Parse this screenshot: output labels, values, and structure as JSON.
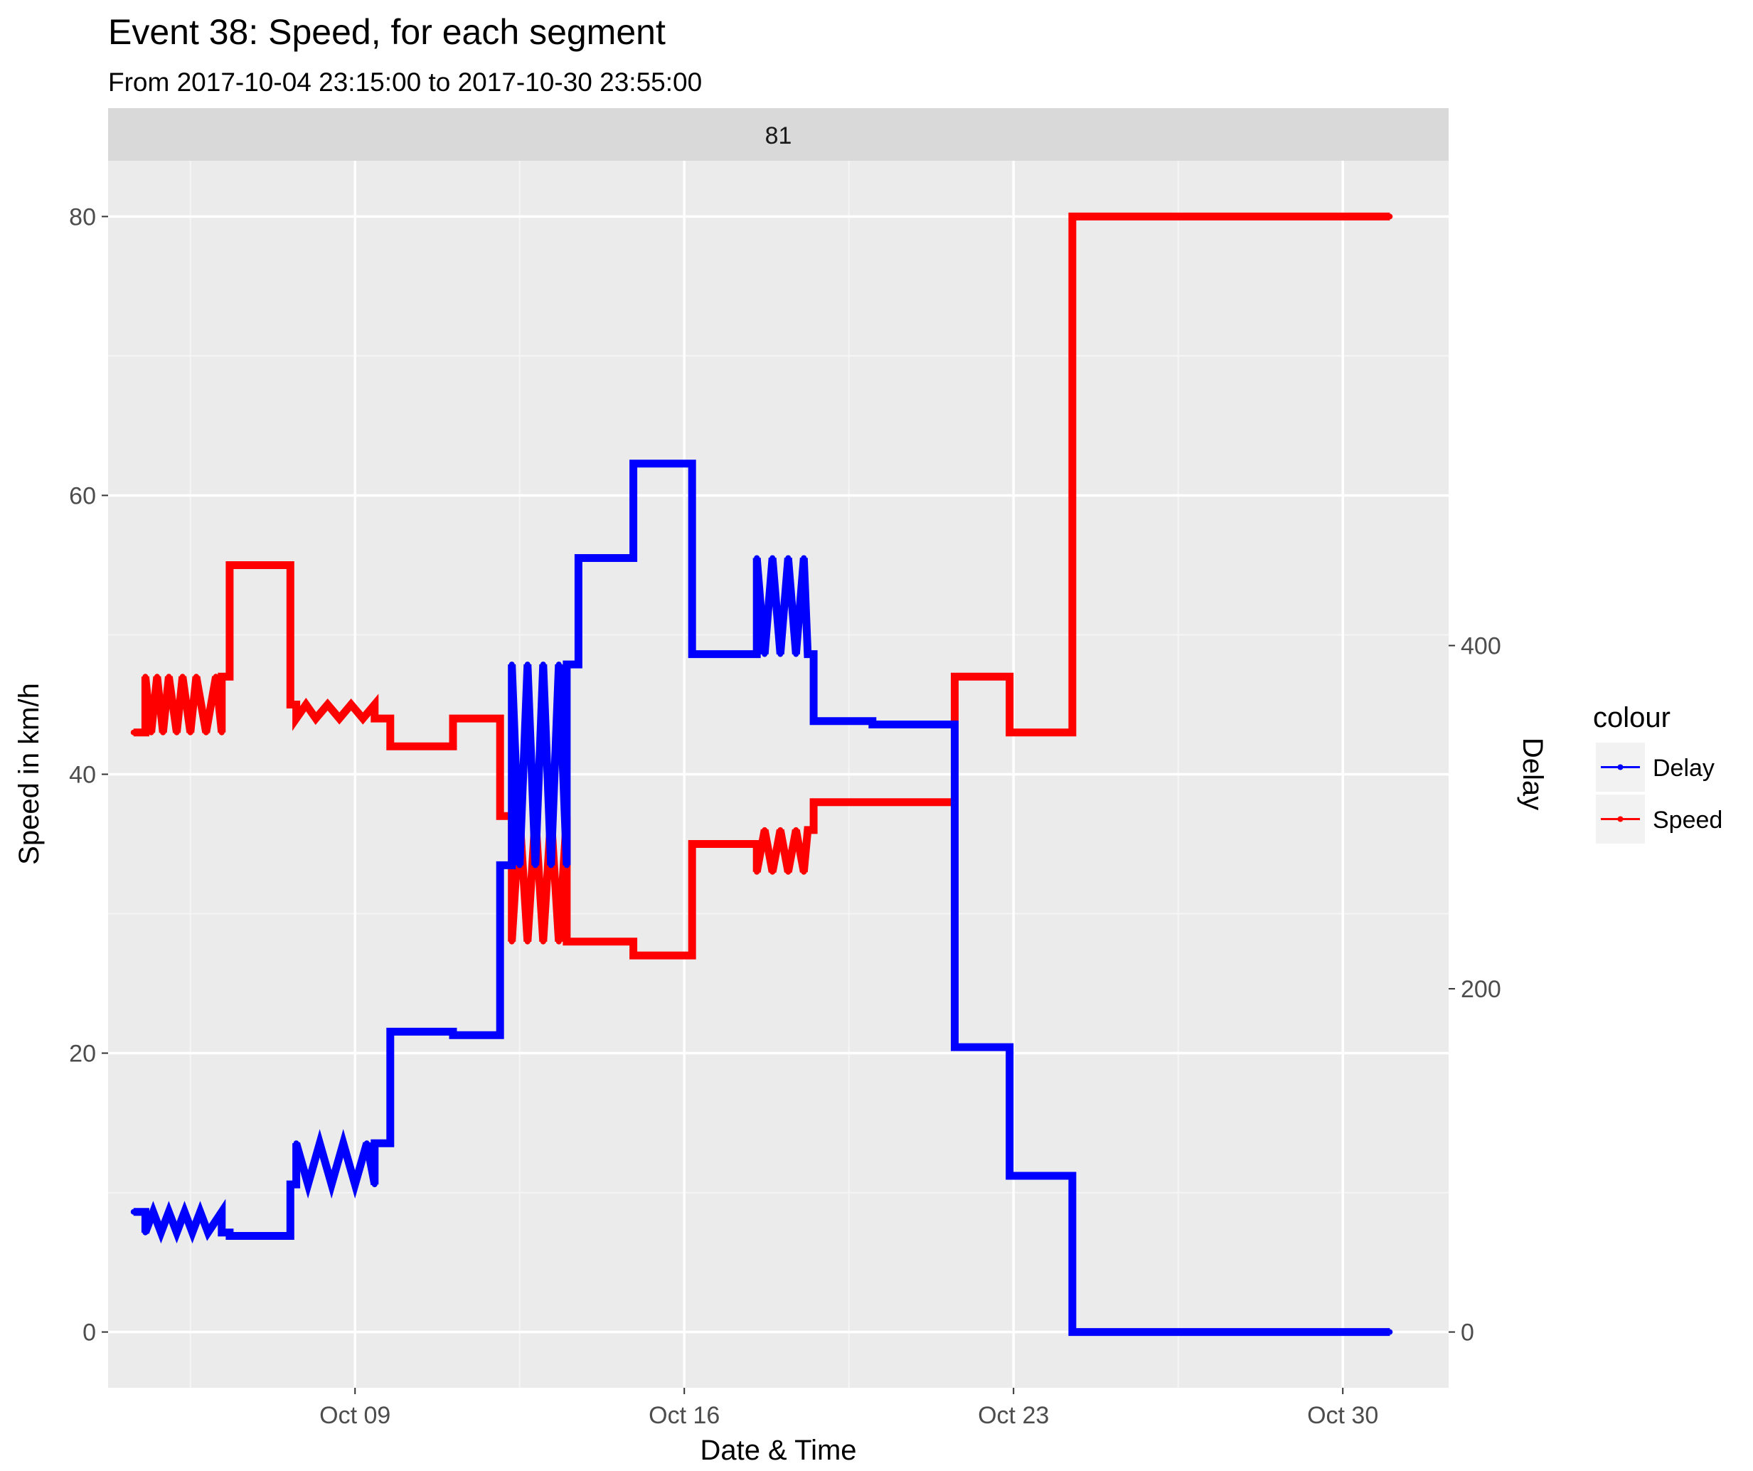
{
  "title": "Event 38: Speed, for each segment",
  "subtitle": "From 2017-10-04 23:15:00 to 2017-10-30 23:55:00",
  "chart_data": {
    "type": "line",
    "facet_label": "81",
    "xlabel": "Date & Time",
    "ylabel": "Speed in km/h",
    "y2label": "Delay",
    "x_ticks": [
      {
        "x": "2017-10-09",
        "label": "Oct 09"
      },
      {
        "x": "2017-10-16",
        "label": "Oct 16"
      },
      {
        "x": "2017-10-23",
        "label": "Oct 23"
      },
      {
        "x": "2017-10-30",
        "label": "Oct 30"
      }
    ],
    "xlim": [
      "2017-10-03T18:00:00",
      "2017-11-01T06:00:00"
    ],
    "ylim": [
      -4,
      84
    ],
    "y_ticks": [
      0,
      20,
      40,
      60,
      80
    ],
    "y2lim": [
      -32.5,
      682.5
    ],
    "y2_ticks": [
      0,
      200,
      400
    ],
    "grid": true,
    "legend": {
      "title": "colour",
      "position": "right",
      "entries": [
        {
          "label": "Delay",
          "color": "#0000ff"
        },
        {
          "label": "Speed",
          "color": "#ff0000"
        }
      ]
    },
    "series": [
      {
        "name": "Speed",
        "axis": "left",
        "color": "#ff0000",
        "steps": [
          [
            "2017-10-04T07:00:00",
            43
          ],
          [
            "2017-10-04T13:00:00",
            43
          ],
          [
            "2017-10-04T13:00:00",
            47
          ],
          [
            "2017-10-04T16:00:00",
            43
          ],
          [
            "2017-10-04T19:00:00",
            47
          ],
          [
            "2017-10-04T22:00:00",
            43
          ],
          [
            "2017-10-05T01:00:00",
            47
          ],
          [
            "2017-10-05T05:00:00",
            43
          ],
          [
            "2017-10-05T08:00:00",
            47
          ],
          [
            "2017-10-05T12:00:00",
            43
          ],
          [
            "2017-10-05T15:00:00",
            47
          ],
          [
            "2017-10-05T20:00:00",
            43
          ],
          [
            "2017-10-06T01:00:00",
            47
          ],
          [
            "2017-10-06T04:00:00",
            43
          ],
          [
            "2017-10-06T04:00:00",
            47
          ],
          [
            "2017-10-06T08:00:00",
            47
          ],
          [
            "2017-10-06T08:00:00",
            55
          ],
          [
            "2017-10-07T15:00:00",
            55
          ],
          [
            "2017-10-07T15:00:00",
            45
          ],
          [
            "2017-10-07T18:00:00",
            45
          ],
          [
            "2017-10-07T18:00:00",
            44
          ],
          [
            "2017-10-07T23:00:00",
            45
          ],
          [
            "2017-10-08T04:00:00",
            44
          ],
          [
            "2017-10-08T10:00:00",
            45
          ],
          [
            "2017-10-08T16:00:00",
            44
          ],
          [
            "2017-10-08T22:00:00",
            45
          ],
          [
            "2017-10-09T04:00:00",
            44
          ],
          [
            "2017-10-09T10:00:00",
            45
          ],
          [
            "2017-10-09T10:00:00",
            44
          ],
          [
            "2017-10-09T18:00:00",
            44
          ],
          [
            "2017-10-09T18:00:00",
            42
          ],
          [
            "2017-10-11T02:00:00",
            42
          ],
          [
            "2017-10-11T02:00:00",
            44
          ],
          [
            "2017-10-12T02:00:00",
            44
          ],
          [
            "2017-10-12T02:00:00",
            37
          ],
          [
            "2017-10-12T08:00:00",
            37
          ],
          [
            "2017-10-12T08:00:00",
            28
          ],
          [
            "2017-10-12T12:00:00",
            37
          ],
          [
            "2017-10-12T16:00:00",
            28
          ],
          [
            "2017-10-12T20:00:00",
            37
          ],
          [
            "2017-10-13T00:00:00",
            28
          ],
          [
            "2017-10-13T04:00:00",
            37
          ],
          [
            "2017-10-13T08:00:00",
            28
          ],
          [
            "2017-10-13T12:00:00",
            37
          ],
          [
            "2017-10-13T12:00:00",
            28
          ],
          [
            "2017-10-14T22:00:00",
            28
          ],
          [
            "2017-10-14T22:00:00",
            27
          ],
          [
            "2017-10-16T04:00:00",
            27
          ],
          [
            "2017-10-16T04:00:00",
            35
          ],
          [
            "2017-10-17T13:00:00",
            35
          ],
          [
            "2017-10-17T13:00:00",
            33
          ],
          [
            "2017-10-17T17:00:00",
            36
          ],
          [
            "2017-10-17T21:00:00",
            33
          ],
          [
            "2017-10-18T01:00:00",
            36
          ],
          [
            "2017-10-18T05:00:00",
            33
          ],
          [
            "2017-10-18T09:00:00",
            36
          ],
          [
            "2017-10-18T13:00:00",
            33
          ],
          [
            "2017-10-18T15:00:00",
            36
          ],
          [
            "2017-10-18T15:00:00",
            36
          ],
          [
            "2017-10-18T18:00:00",
            36
          ],
          [
            "2017-10-18T18:00:00",
            38
          ],
          [
            "2017-10-21T18:00:00",
            38
          ],
          [
            "2017-10-21T18:00:00",
            47
          ],
          [
            "2017-10-22T22:00:00",
            47
          ],
          [
            "2017-10-22T22:00:00",
            43
          ],
          [
            "2017-10-24T06:00:00",
            43
          ],
          [
            "2017-10-24T06:00:00",
            80
          ],
          [
            "2017-10-31T00:00:00",
            80
          ]
        ]
      },
      {
        "name": "Delay",
        "axis": "right",
        "color": "#0000ff",
        "steps": [
          [
            "2017-10-04T07:00:00",
            70
          ],
          [
            "2017-10-04T13:00:00",
            70
          ],
          [
            "2017-10-04T13:00:00",
            58
          ],
          [
            "2017-10-04T17:00:00",
            70
          ],
          [
            "2017-10-04T21:00:00",
            58
          ],
          [
            "2017-10-05T01:00:00",
            70
          ],
          [
            "2017-10-05T05:00:00",
            58
          ],
          [
            "2017-10-05T09:00:00",
            70
          ],
          [
            "2017-10-05T13:00:00",
            58
          ],
          [
            "2017-10-05T17:00:00",
            70
          ],
          [
            "2017-10-05T21:00:00",
            58
          ],
          [
            "2017-10-06T04:00:00",
            70
          ],
          [
            "2017-10-06T04:00:00",
            58
          ],
          [
            "2017-10-06T08:00:00",
            58
          ],
          [
            "2017-10-06T08:00:00",
            56
          ],
          [
            "2017-10-07T15:00:00",
            56
          ],
          [
            "2017-10-07T15:00:00",
            86
          ],
          [
            "2017-10-07T18:00:00",
            86
          ],
          [
            "2017-10-07T18:00:00",
            110
          ],
          [
            "2017-10-08T00:00:00",
            86
          ],
          [
            "2017-10-08T06:00:00",
            110
          ],
          [
            "2017-10-08T12:00:00",
            86
          ],
          [
            "2017-10-08T18:00:00",
            110
          ],
          [
            "2017-10-09T00:00:00",
            86
          ],
          [
            "2017-10-09T06:00:00",
            110
          ],
          [
            "2017-10-09T10:00:00",
            86
          ],
          [
            "2017-10-09T10:00:00",
            110
          ],
          [
            "2017-10-09T18:00:00",
            110
          ],
          [
            "2017-10-09T18:00:00",
            175
          ],
          [
            "2017-10-11T02:00:00",
            175
          ],
          [
            "2017-10-11T02:00:00",
            173
          ],
          [
            "2017-10-12T02:00:00",
            173
          ],
          [
            "2017-10-12T02:00:00",
            272
          ],
          [
            "2017-10-12T08:00:00",
            272
          ],
          [
            "2017-10-12T08:00:00",
            389
          ],
          [
            "2017-10-12T12:00:00",
            272
          ],
          [
            "2017-10-12T16:00:00",
            389
          ],
          [
            "2017-10-12T20:00:00",
            272
          ],
          [
            "2017-10-13T00:00:00",
            389
          ],
          [
            "2017-10-13T04:00:00",
            272
          ],
          [
            "2017-10-13T08:00:00",
            389
          ],
          [
            "2017-10-13T12:00:00",
            272
          ],
          [
            "2017-10-13T12:00:00",
            389
          ],
          [
            "2017-10-13T18:00:00",
            389
          ],
          [
            "2017-10-13T18:00:00",
            451
          ],
          [
            "2017-10-14T22:00:00",
            451
          ],
          [
            "2017-10-14T22:00:00",
            506
          ],
          [
            "2017-10-16T04:00:00",
            506
          ],
          [
            "2017-10-16T04:00:00",
            395
          ],
          [
            "2017-10-17T13:00:00",
            395
          ],
          [
            "2017-10-17T13:00:00",
            451
          ],
          [
            "2017-10-17T17:00:00",
            395
          ],
          [
            "2017-10-17T21:00:00",
            451
          ],
          [
            "2017-10-18T01:00:00",
            395
          ],
          [
            "2017-10-18T05:00:00",
            451
          ],
          [
            "2017-10-18T09:00:00",
            395
          ],
          [
            "2017-10-18T13:00:00",
            451
          ],
          [
            "2017-10-18T15:00:00",
            395
          ],
          [
            "2017-10-18T15:00:00",
            395
          ],
          [
            "2017-10-18T18:00:00",
            395
          ],
          [
            "2017-10-18T18:00:00",
            356
          ],
          [
            "2017-10-20T00:00:00",
            356
          ],
          [
            "2017-10-20T00:00:00",
            354
          ],
          [
            "2017-10-21T18:00:00",
            354
          ],
          [
            "2017-10-21T18:00:00",
            166
          ],
          [
            "2017-10-22T22:00:00",
            166
          ],
          [
            "2017-10-22T22:00:00",
            91
          ],
          [
            "2017-10-24T06:00:00",
            91
          ],
          [
            "2017-10-24T06:00:00",
            0
          ],
          [
            "2017-10-31T00:00:00",
            0
          ]
        ]
      }
    ]
  }
}
